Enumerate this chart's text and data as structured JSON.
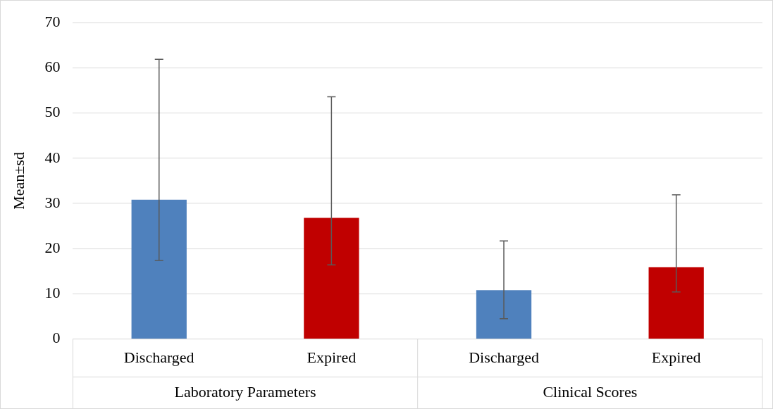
{
  "chart_data": {
    "type": "bar",
    "ylabel": "Mean±sd",
    "categories": [
      "Discharged",
      "Expired",
      "Discharged",
      "Expired"
    ],
    "values": [
      30.8,
      26.8,
      10.8,
      15.9
    ],
    "colors": [
      "#4f81bd",
      "#c00000",
      "#4f81bd",
      "#c00000"
    ],
    "errors": [
      [
        17.4,
        61.9
      ],
      [
        16.4,
        53.6
      ],
      [
        4.5,
        21.7
      ],
      [
        10.4,
        31.9
      ]
    ],
    "ylim": [
      0,
      70
    ],
    "yticks": [
      0,
      10,
      20,
      30,
      40,
      50,
      60,
      70
    ],
    "grid": "y",
    "legend": false,
    "annotations": [
      "Laboratory Parameters",
      "Clinical Scores"
    ]
  }
}
